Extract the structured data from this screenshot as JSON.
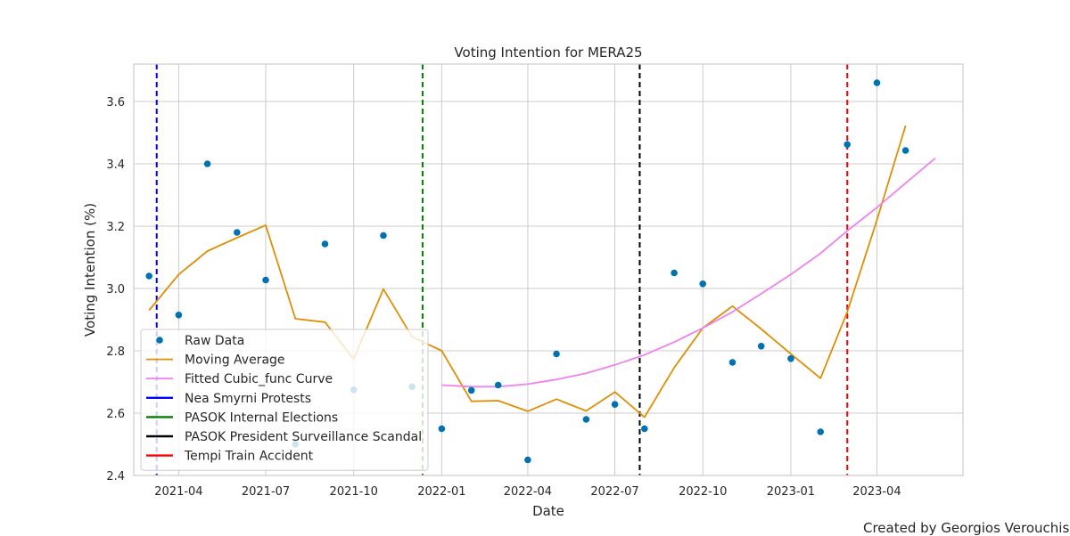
{
  "chart_data": {
    "type": "scatter",
    "title": "Voting Intention for MERA25",
    "xlabel": "Date",
    "ylabel": "Voting Intention (%)",
    "xlim": [
      "2021-02-13",
      "2023-06-30"
    ],
    "ylim": [
      2.4,
      3.72
    ],
    "x_ticks": [
      "2021-04",
      "2021-07",
      "2021-10",
      "2022-01",
      "2022-04",
      "2022-07",
      "2022-10",
      "2023-01",
      "2023-04"
    ],
    "y_ticks": [
      2.4,
      2.6,
      2.8,
      3.0,
      3.2,
      3.4,
      3.6
    ],
    "grid": true,
    "legend_position": "lower-left",
    "series": [
      {
        "name": "Raw Data",
        "kind": "scatter",
        "color": "#0072b2",
        "points": [
          [
            "2021-03-01",
            3.04
          ],
          [
            "2021-04-01",
            2.915
          ],
          [
            "2021-05-01",
            3.4
          ],
          [
            "2021-06-01",
            3.18
          ],
          [
            "2021-07-01",
            3.027
          ],
          [
            "2021-08-01",
            2.5
          ],
          [
            "2021-09-01",
            3.143
          ],
          [
            "2021-10-01",
            2.675
          ],
          [
            "2021-11-01",
            3.17
          ],
          [
            "2021-12-01",
            2.685
          ],
          [
            "2022-01-01",
            2.55
          ],
          [
            "2022-02-01",
            2.673
          ],
          [
            "2022-03-01",
            2.69
          ],
          [
            "2022-04-01",
            2.45
          ],
          [
            "2022-05-01",
            2.79
          ],
          [
            "2022-06-01",
            2.58
          ],
          [
            "2022-07-01",
            2.628
          ],
          [
            "2022-08-01",
            2.55
          ],
          [
            "2022-09-01",
            3.05
          ],
          [
            "2022-10-01",
            3.015
          ],
          [
            "2022-11-01",
            2.763
          ],
          [
            "2022-12-01",
            2.815
          ],
          [
            "2023-01-01",
            2.775
          ],
          [
            "2023-02-01",
            2.54
          ],
          [
            "2023-03-01",
            3.462
          ],
          [
            "2023-04-01",
            3.66
          ],
          [
            "2023-05-01",
            3.443
          ]
        ]
      },
      {
        "name": "Moving Average",
        "kind": "line",
        "color": "#de8f05",
        "points": [
          [
            "2021-03-01",
            2.93
          ],
          [
            "2021-04-01",
            3.045
          ],
          [
            "2021-05-01",
            3.12
          ],
          [
            "2021-06-01",
            3.163
          ],
          [
            "2021-07-01",
            3.203
          ],
          [
            "2021-08-01",
            2.903
          ],
          [
            "2021-09-01",
            2.892
          ],
          [
            "2021-10-01",
            2.773
          ],
          [
            "2021-11-01",
            2.998
          ],
          [
            "2021-12-01",
            2.845
          ],
          [
            "2022-01-01",
            2.8
          ],
          [
            "2022-02-01",
            2.638
          ],
          [
            "2022-03-01",
            2.64
          ],
          [
            "2022-04-01",
            2.606
          ],
          [
            "2022-05-01",
            2.645
          ],
          [
            "2022-06-01",
            2.607
          ],
          [
            "2022-07-01",
            2.668
          ],
          [
            "2022-08-01",
            2.587
          ],
          [
            "2022-09-01",
            2.746
          ],
          [
            "2022-10-01",
            2.873
          ],
          [
            "2022-11-01",
            2.943
          ],
          [
            "2022-12-01",
            2.87
          ],
          [
            "2023-01-01",
            2.79
          ],
          [
            "2023-02-01",
            2.712
          ],
          [
            "2023-03-01",
            2.925
          ],
          [
            "2023-04-01",
            3.22
          ],
          [
            "2023-05-01",
            3.522
          ]
        ]
      },
      {
        "name": "Fitted Cubic_func Curve",
        "kind": "line",
        "color": "#ee82ee",
        "points": [
          [
            "2022-01-01",
            2.69
          ],
          [
            "2022-02-01",
            2.685
          ],
          [
            "2022-03-01",
            2.685
          ],
          [
            "2022-04-01",
            2.693
          ],
          [
            "2022-05-01",
            2.708
          ],
          [
            "2022-06-01",
            2.728
          ],
          [
            "2022-07-01",
            2.755
          ],
          [
            "2022-08-01",
            2.787
          ],
          [
            "2022-09-01",
            2.828
          ],
          [
            "2022-10-01",
            2.873
          ],
          [
            "2022-11-01",
            2.925
          ],
          [
            "2022-12-01",
            2.983
          ],
          [
            "2023-01-01",
            3.045
          ],
          [
            "2023-02-01",
            3.113
          ],
          [
            "2023-03-01",
            3.185
          ],
          [
            "2023-04-01",
            3.26
          ],
          [
            "2023-05-01",
            3.338
          ],
          [
            "2023-06-01",
            3.418
          ]
        ]
      }
    ],
    "events": [
      {
        "name": "Nea Smyrni Protests",
        "date": "2021-03-09",
        "color": "#0000ff"
      },
      {
        "name": "PASOK Internal Elections",
        "date": "2021-12-12",
        "color": "#008000"
      },
      {
        "name": "PASOK President Surveillance Scandal",
        "date": "2022-07-27",
        "color": "#000000"
      },
      {
        "name": "Tempi Train Accident",
        "date": "2023-03-01",
        "color": "#ff0000"
      }
    ],
    "credit": "Created by Georgios Verouchis"
  }
}
